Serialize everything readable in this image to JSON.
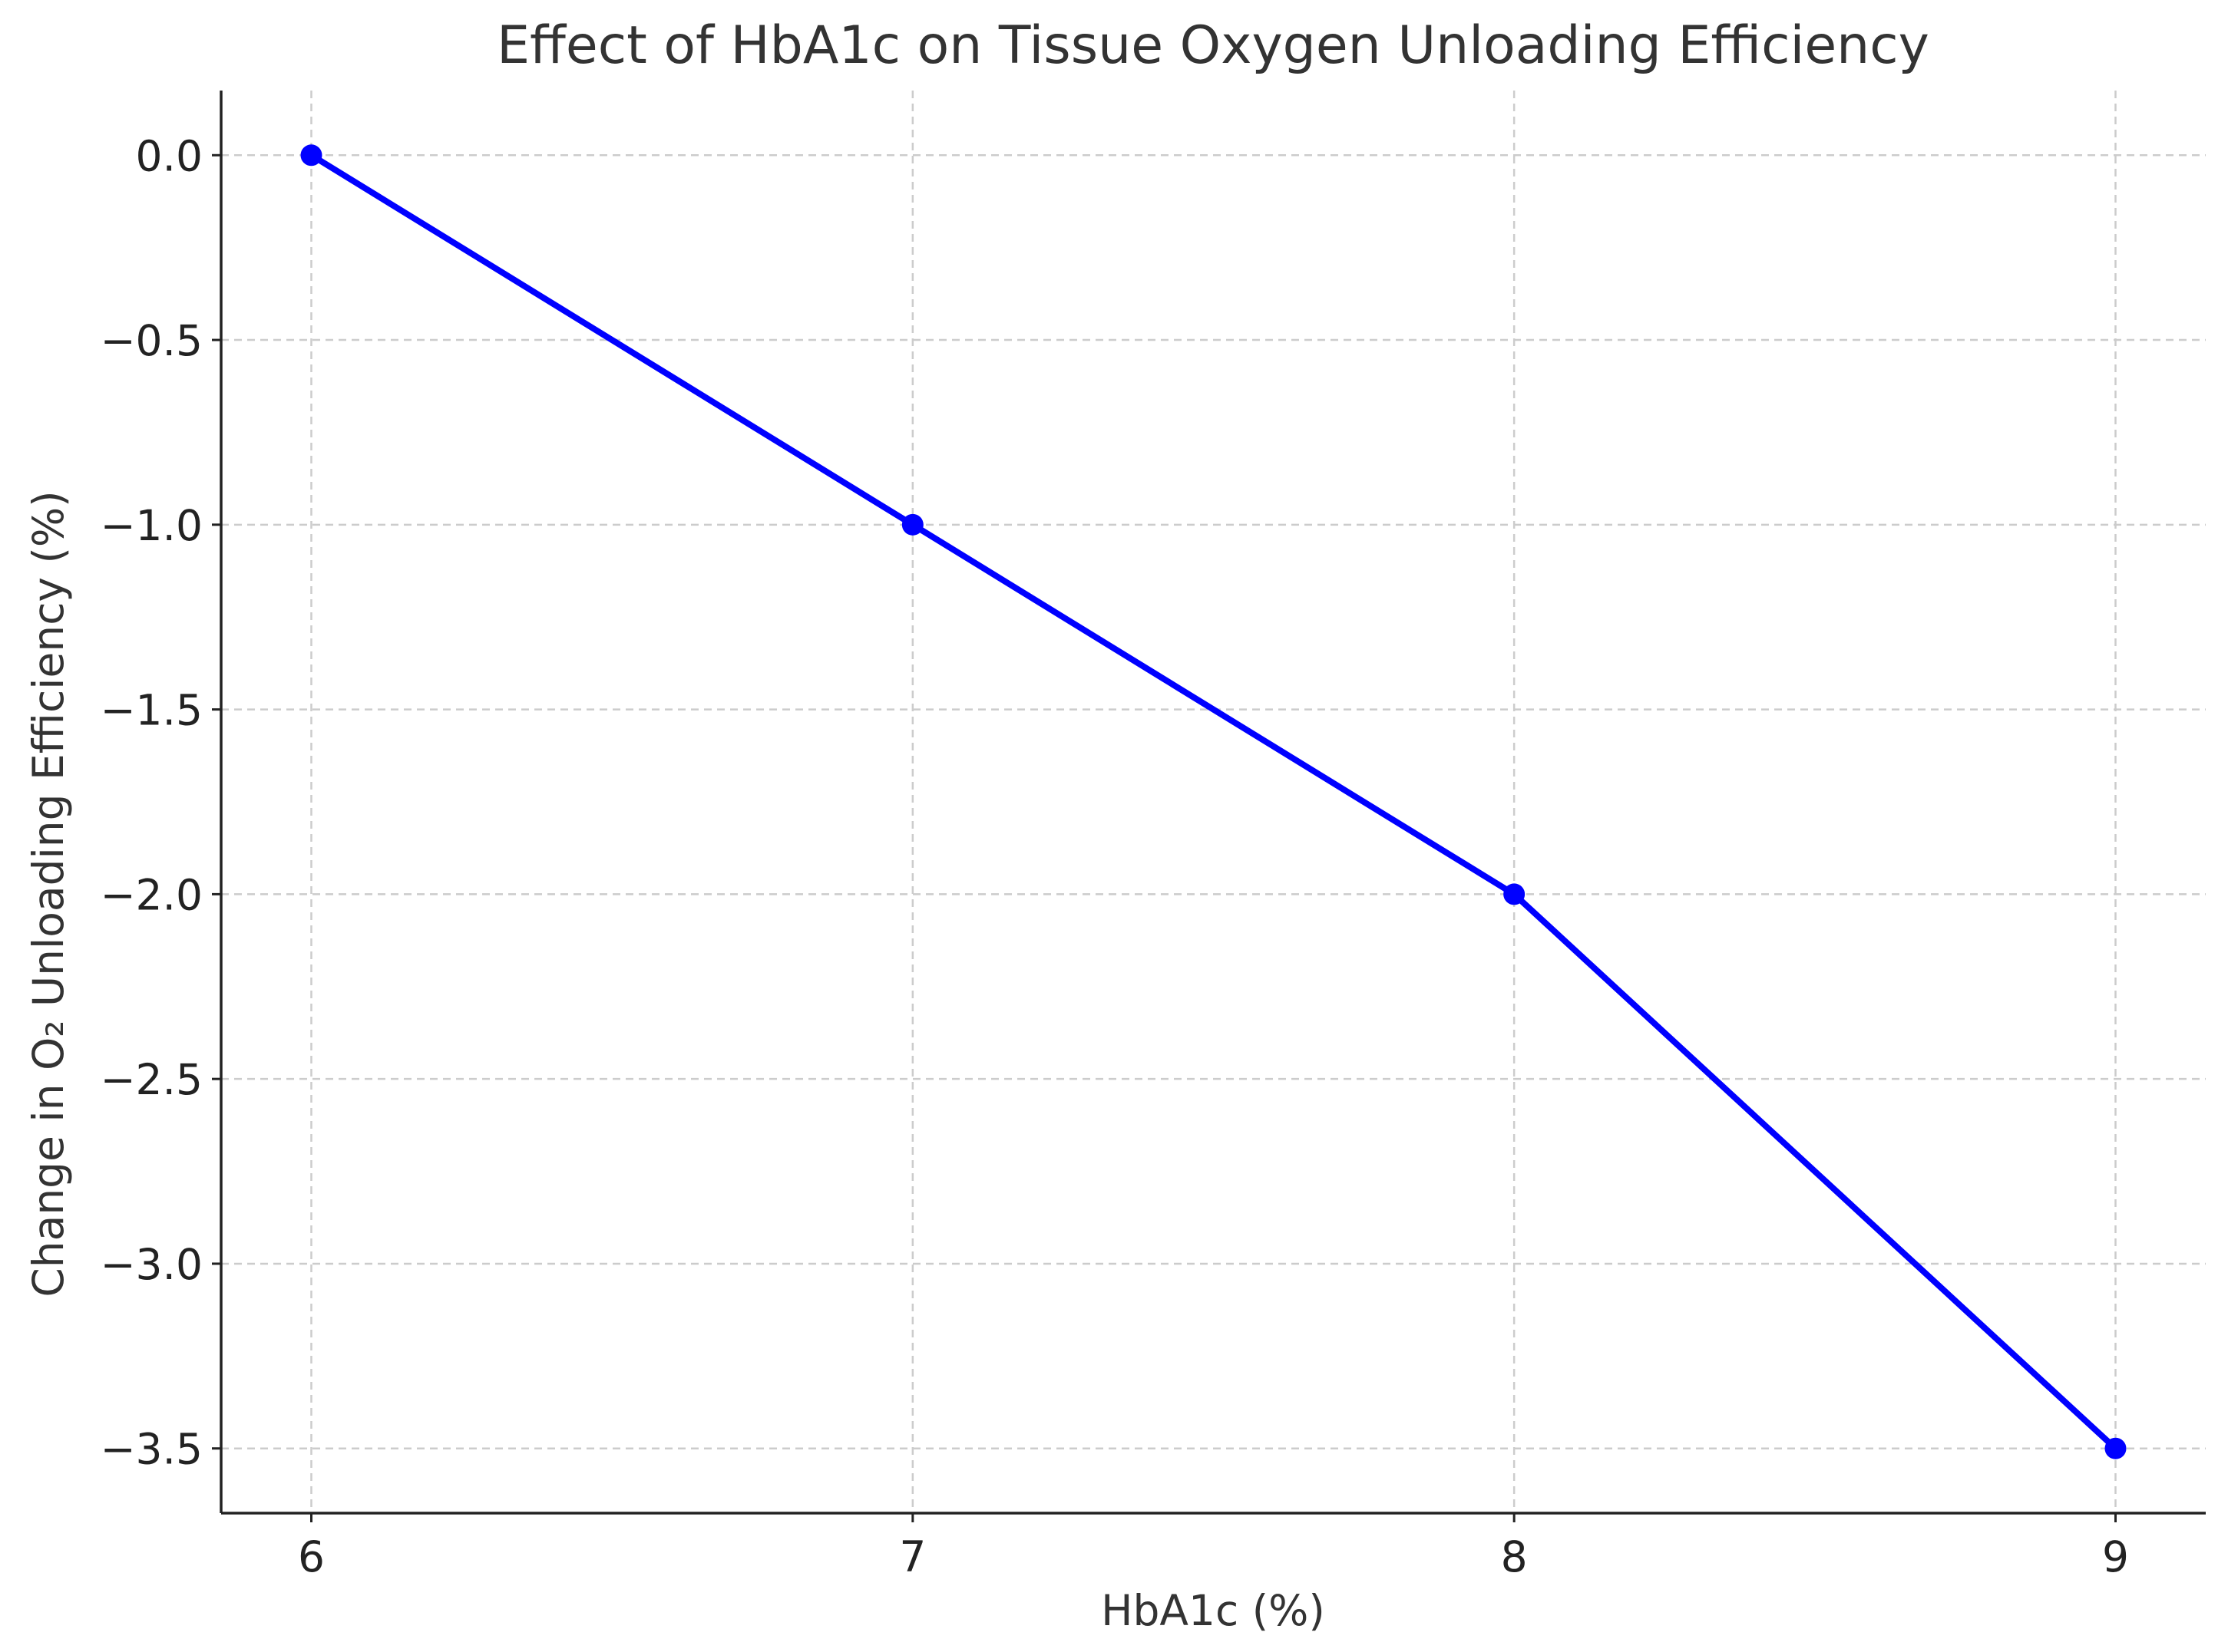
{
  "chart_data": {
    "type": "line",
    "title": "Effect of HbA1c on Tissue Oxygen Unloading Efficiency",
    "xlabel": "HbA1c (%)",
    "ylabel": "Change in O₂ Unloading Efficiency (%)",
    "x": [
      6,
      7,
      8,
      9
    ],
    "xticks": [
      6,
      7,
      8,
      9
    ],
    "xtick_labels": [
      "6",
      "7",
      "8",
      "9"
    ],
    "yticks": [
      0.0,
      -0.5,
      -1.0,
      -1.5,
      -2.0,
      -2.5,
      -3.0,
      -3.5
    ],
    "ytick_labels": [
      "0.0",
      "−0.5",
      "−1.0",
      "−1.5",
      "−2.0",
      "−2.5",
      "−3.0",
      "−3.5"
    ],
    "xlim": [
      5.85,
      9.15
    ],
    "ylim": [
      -3.675,
      0.175
    ],
    "grid": true,
    "marker": "circle",
    "series": [
      {
        "values": [
          0.0,
          -1.0,
          -2.0,
          -3.5
        ],
        "color": "#0000ff"
      }
    ]
  }
}
